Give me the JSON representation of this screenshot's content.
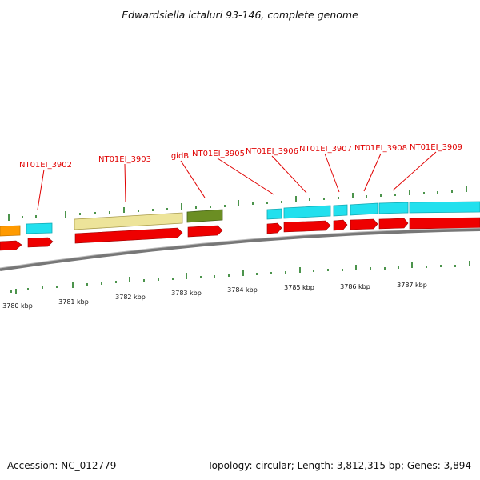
{
  "title": "Edwardsiella ictaluri 93-146, complete genome",
  "footer": {
    "accession": "Accession: NC_012779",
    "summary": "Topology: circular; Length: 3,812,315 bp; Genes: 3,894"
  },
  "axis_labels": [
    "3780 kbp",
    "3781 kbp",
    "3782 kbp",
    "3783 kbp",
    "3784 kbp",
    "3785 kbp",
    "3786 kbp",
    "3787 kbp"
  ],
  "gene_labels": [
    "NT01EI_3902",
    "NT01EI_3903",
    "gidB",
    "NT01EI_3905",
    "NT01EI_3906",
    "NT01EI_3907",
    "NT01EI_3908",
    "NT01EI_3909"
  ],
  "colors": {
    "cds": "#ee0000",
    "gene_cyan": "#22e0ee",
    "gene_yellow": "#ede49a",
    "gene_olive": "#6b8e23",
    "gene_orange": "#ff9a00",
    "label": "#e00000",
    "tick": "#1f7a1f",
    "backbone": "#777777"
  }
}
